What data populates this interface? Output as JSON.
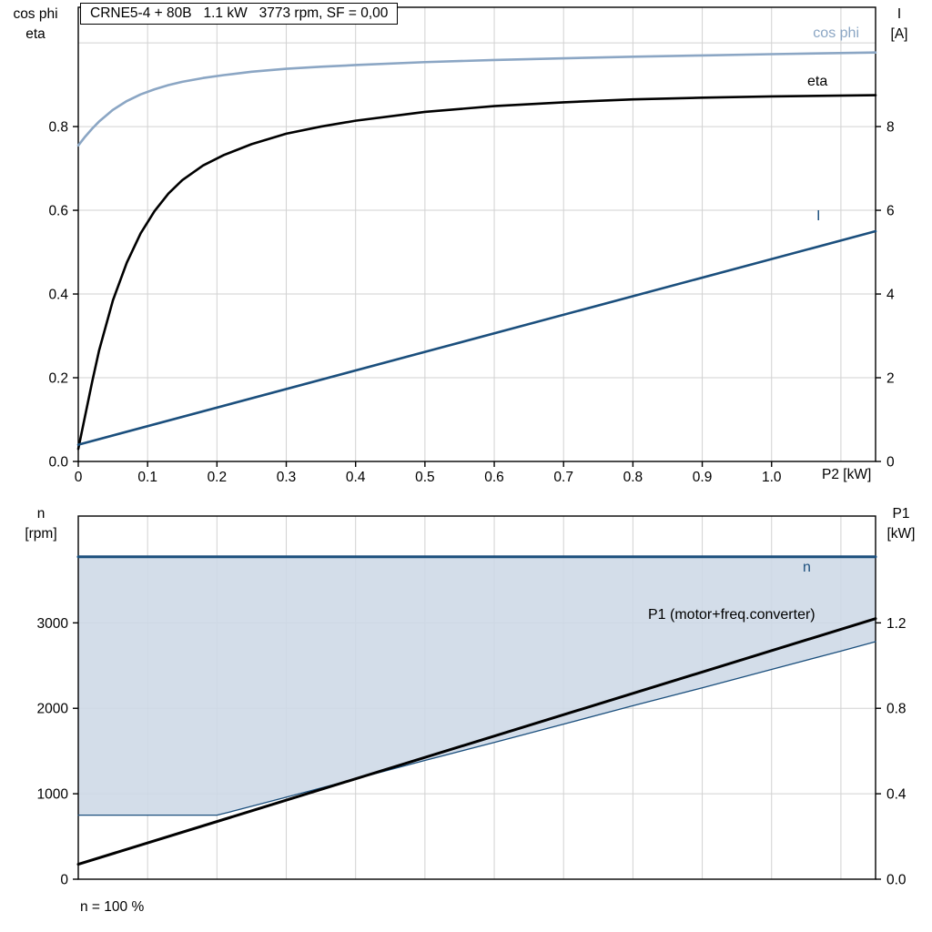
{
  "title_box": {
    "text": "CRNE5-4 + 80B   1.1 kW   3773 rpm, SF = 0,00"
  },
  "colors": {
    "cos_phi": "#8ba6c4",
    "eta": "#000000",
    "current": "#1b4f7d",
    "speed": "#1b4f7d",
    "p1": "#000000",
    "area_fill": "#cdd8e6",
    "grid": "#d2d2d2",
    "axis": "#000000"
  },
  "top_chart": {
    "left_axis_title": {
      "line1": "cos phi",
      "line2": "eta"
    },
    "right_axis_title": {
      "line1": "I",
      "line2": "[A]"
    },
    "x_axis_title": "P2 [kW]",
    "curve_labels": {
      "cos_phi": "cos phi",
      "eta": "eta",
      "current": "I"
    }
  },
  "bottom_chart": {
    "left_axis_title": {
      "line1": "n",
      "line2": "[rpm]"
    },
    "right_axis_title": {
      "line1": "P1",
      "line2": "[kW]"
    },
    "curve_labels": {
      "speed": "n",
      "p1": "P1 (motor+freq.converter)"
    },
    "footnote": "n = 100 %"
  },
  "chart_data": [
    {
      "type": "line",
      "title": "CRNE5-4 + 80B   1.1 kW   3773 rpm, SF = 0,00",
      "xlabel": "P2 [kW]",
      "xlim": [
        0,
        1.15
      ],
      "x_ticks": [
        0,
        0.1,
        0.2,
        0.3,
        0.4,
        0.5,
        0.6,
        0.7,
        0.8,
        0.9,
        1.0
      ],
      "x_tick_labels": [
        "0",
        "0.1",
        "0.2",
        "0.3",
        "0.4",
        "0.5",
        "0.6",
        "0.7",
        "0.8",
        "0.9",
        "1.0"
      ],
      "grid_x": [
        0.1,
        0.2,
        0.3,
        0.4,
        0.5,
        0.6,
        0.7,
        0.8,
        0.9,
        1.0,
        1.1
      ],
      "grid_y_left": [
        0.2,
        0.4,
        0.6,
        0.8,
        1.0
      ],
      "left_axis": {
        "title": "cos phi / eta",
        "lim": [
          0,
          1.085
        ],
        "ticks": [
          0,
          0.2,
          0.4,
          0.6,
          0.8
        ],
        "tick_labels": [
          "0.0",
          "0.2",
          "0.4",
          "0.6",
          "0.8"
        ]
      },
      "right_axis": {
        "title": "I [A]",
        "lim": [
          0,
          10.85
        ],
        "ticks": [
          0,
          2,
          4,
          6,
          8
        ],
        "tick_labels": [
          "0",
          "2",
          "4",
          "6",
          "8"
        ]
      },
      "grid": true,
      "legend_position": "inline-right",
      "series": [
        {
          "name": "cos phi",
          "axis": "left",
          "color": "#8ba6c4",
          "width": 2.6,
          "x": [
            0,
            0.01,
            0.02,
            0.03,
            0.05,
            0.07,
            0.09,
            0.11,
            0.13,
            0.15,
            0.18,
            0.21,
            0.25,
            0.3,
            0.35,
            0.4,
            0.5,
            0.6,
            0.7,
            0.8,
            0.9,
            1.0,
            1.15
          ],
          "y": [
            0.755,
            0.776,
            0.795,
            0.812,
            0.84,
            0.861,
            0.877,
            0.889,
            0.899,
            0.907,
            0.916,
            0.923,
            0.931,
            0.938,
            0.943,
            0.947,
            0.954,
            0.959,
            0.963,
            0.967,
            0.97,
            0.973,
            0.977
          ]
        },
        {
          "name": "eta",
          "axis": "left",
          "color": "#000000",
          "width": 2.6,
          "x": [
            0,
            0.01,
            0.02,
            0.03,
            0.05,
            0.07,
            0.09,
            0.11,
            0.13,
            0.15,
            0.18,
            0.21,
            0.25,
            0.3,
            0.35,
            0.4,
            0.5,
            0.6,
            0.7,
            0.8,
            0.9,
            1.0,
            1.15
          ],
          "y": [
            0.03,
            0.11,
            0.19,
            0.265,
            0.385,
            0.475,
            0.545,
            0.598,
            0.64,
            0.672,
            0.707,
            0.732,
            0.758,
            0.783,
            0.8,
            0.814,
            0.835,
            0.849,
            0.858,
            0.865,
            0.869,
            0.872,
            0.875
          ]
        },
        {
          "name": "I",
          "axis": "right",
          "color": "#1b4f7d",
          "width": 2.6,
          "x": [
            0,
            1.15
          ],
          "y": [
            0.4,
            5.5
          ]
        }
      ]
    },
    {
      "type": "line",
      "title": "",
      "xlabel": "",
      "xlim": [
        0,
        1.15
      ],
      "x_ticks": [],
      "x_tick_labels": [],
      "grid_x": [
        0.1,
        0.2,
        0.3,
        0.4,
        0.5,
        0.6,
        0.7,
        0.8,
        0.9,
        1.0,
        1.1
      ],
      "grid_y_left": [
        1000,
        2000,
        3000
      ],
      "left_axis": {
        "title": "n [rpm]",
        "lim": [
          0,
          4250
        ],
        "ticks": [
          0,
          1000,
          2000,
          3000
        ],
        "tick_labels": [
          "0",
          "1000",
          "2000",
          "3000"
        ]
      },
      "right_axis": {
        "title": "P1 [kW]",
        "lim": [
          0,
          1.7
        ],
        "ticks": [
          0,
          0.4,
          0.8,
          1.2
        ],
        "tick_labels": [
          "0.0",
          "0.4",
          "0.8",
          "1.2"
        ]
      },
      "grid": true,
      "area": {
        "name": "speed-operating-range",
        "axis": "left",
        "color": "#cdd8e6",
        "opacity": 0.88,
        "upper_y": 3773,
        "lower_x": [
          0,
          0.2,
          0.22,
          0.3,
          0.4,
          0.5,
          0.6,
          0.7,
          0.8,
          0.9,
          1.0,
          1.1,
          1.15
        ],
        "lower_y": [
          750,
          750,
          790,
          960,
          1175,
          1390,
          1600,
          1815,
          2030,
          2240,
          2455,
          2670,
          2780
        ]
      },
      "series": [
        {
          "name": "n",
          "axis": "left",
          "color": "#1b4f7d",
          "width": 3,
          "x": [
            0,
            1.15
          ],
          "y": [
            3773,
            3773
          ]
        },
        {
          "name": "n min",
          "axis": "left",
          "color": "#1b4f7d",
          "width": 1.3,
          "x": [
            0,
            0.2,
            0.22,
            0.3,
            0.4,
            0.5,
            0.6,
            0.7,
            0.8,
            0.9,
            1.0,
            1.1,
            1.15
          ],
          "y": [
            750,
            750,
            790,
            960,
            1175,
            1390,
            1600,
            1815,
            2030,
            2240,
            2455,
            2670,
            2780
          ]
        },
        {
          "name": "P1 (motor+freq.converter)",
          "axis": "right",
          "color": "#000000",
          "width": 3,
          "x": [
            0,
            1.15
          ],
          "y": [
            0.07,
            1.22
          ]
        }
      ],
      "annotations": [
        "n = 100 %"
      ]
    }
  ]
}
